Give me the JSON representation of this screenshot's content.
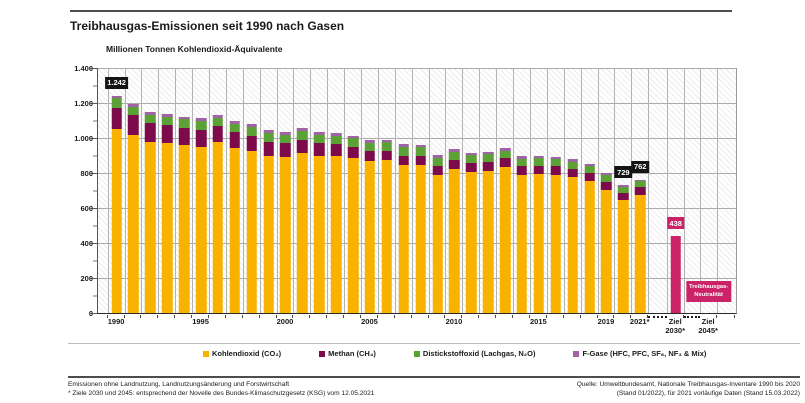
{
  "header": {
    "title": "Treibhausgas-Emissionen seit 1990 nach Gasen",
    "y_axis_title": "Millionen Tonnen Kohlendioxid-Äquivalente"
  },
  "colors": {
    "co2": "#F9B200",
    "ch4": "#7D0A4B",
    "n2o": "#5BA136",
    "fgas": "#9F63A6",
    "target_pink": "#CC2368",
    "label_black": "#141414"
  },
  "chart_data": {
    "type": "bar",
    "stacked": true,
    "title": "Treibhausgas-Emissionen seit 1990 nach Gasen",
    "ylabel": "Millionen Tonnen Kohlendioxid-Äquivalente",
    "ylim": [
      0,
      1400
    ],
    "y_tick_labels": [
      "1.400",
      "1.200",
      "1.000",
      "800",
      "600",
      "400",
      "200",
      "0"
    ],
    "grid": true,
    "categories": [
      "1990",
      "1991",
      "1992",
      "1993",
      "1994",
      "1995",
      "1996",
      "1997",
      "1998",
      "1999",
      "2000",
      "2001",
      "2002",
      "2003",
      "2004",
      "2005",
      "2006",
      "2007",
      "2008",
      "2009",
      "2010",
      "2011",
      "2012",
      "2013",
      "2014",
      "2015",
      "2016",
      "2017",
      "2018",
      "2019",
      "2020",
      "2021",
      "Ziel 2030*",
      "Ziel 2045*"
    ],
    "series": [
      {
        "name": "Kohlendioxid (CO₂)",
        "color": "#F9B200",
        "values": [
          1052,
          1017,
          980,
          972,
          960,
          951,
          975,
          943,
          928,
          898,
          891,
          915,
          899,
          897,
          886,
          866,
          872,
          846,
          843,
          789,
          822,
          805,
          812,
          834,
          790,
          792,
          790,
          775,
          755,
          703,
          644,
          675
        ]
      },
      {
        "name": "Methan (CH₄)",
        "color": "#7D0A4B",
        "values": [
          120,
          113,
          107,
          102,
          98,
          95,
          92,
          89,
          85,
          82,
          78,
          74,
          70,
          66,
          62,
          58,
          55,
          54,
          53,
          51,
          50,
          50,
          50,
          50,
          49,
          49,
          48,
          47,
          45,
          44,
          43,
          43
        ]
      },
      {
        "name": "Distickstoffoxid (Lachgas, N₂O)",
        "color": "#5BA136",
        "values": [
          57,
          50,
          47,
          47,
          48,
          51,
          50,
          50,
          50,
          50,
          51,
          51,
          50,
          49,
          50,
          49,
          48,
          49,
          51,
          48,
          49,
          46,
          44,
          43,
          43,
          43,
          42,
          43,
          41,
          42,
          33,
          35
        ]
      },
      {
        "name": "F-Gase (HFC, PFC, SF₆, NF₃ & Mix)",
        "color": "#9F63A6",
        "values": [
          13,
          13,
          13,
          14,
          15,
          16,
          17,
          17,
          17,
          16,
          15,
          15,
          15,
          15,
          16,
          16,
          16,
          16,
          16,
          15,
          15,
          14,
          14,
          14,
          14,
          14,
          14,
          13,
          12,
          11,
          9,
          9
        ]
      }
    ],
    "targets": [
      {
        "category": "Ziel 2030*",
        "value": 438,
        "label": "438",
        "color": "#CC2368"
      }
    ],
    "value_labels": [
      {
        "category": "1990",
        "label": "1.242",
        "style": "black"
      },
      {
        "category": "2020",
        "label": "729",
        "style": "black"
      },
      {
        "category": "2021",
        "label": "762",
        "style": "black"
      },
      {
        "category": "Ziel 2030*",
        "label": "438",
        "style": "pink"
      }
    ],
    "annotations": [
      {
        "category": "Ziel 2045*",
        "lines": [
          "Treibhausgas-",
          "Neutralität"
        ]
      }
    ],
    "x_tick_labels": {
      "1990": "1990",
      "1995": "1995",
      "2000": "2000",
      "2005": "2005",
      "2010": "2010",
      "2015": "2015",
      "2019": "2019",
      "2021": "2021*",
      "Ziel 2030*": "Ziel\n2030*",
      "Ziel 2045*": "Ziel\n2045*"
    }
  },
  "legend": {
    "items": [
      {
        "label": "Kohlendioxid (CO₂)",
        "color": "#F9B200"
      },
      {
        "label": "Methan (CH₄)",
        "color": "#7D0A4B"
      },
      {
        "label": "Distickstoffoxid (Lachgas, N₂O)",
        "color": "#5BA136"
      },
      {
        "label": "F-Gase (HFC, PFC, SF₆, NF₃ & Mix)",
        "color": "#9F63A6"
      }
    ]
  },
  "footnotes": {
    "line1": "Emissionen ohne Landnutzung, Landnutzungsänderung und Forstwirtschaft",
    "line2": "* Ziele 2030 und 2045: entsprechend der Novelle des Bundes-Klimaschutzgesetz (KSG) vom 12.05.2021"
  },
  "source": {
    "line1": "Quelle: Umweltbundesamt, Nationale Treibhausgas-Inventare 1990 bis 2020",
    "line2": "(Stand 01/2022), für 2021 vorläufige Daten (Stand 15.03.2022)"
  }
}
